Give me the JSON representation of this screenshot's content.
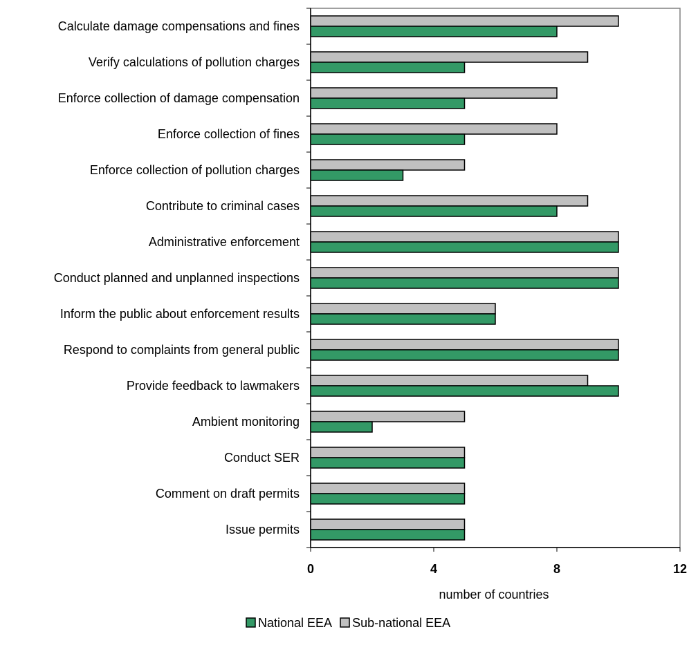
{
  "chart_data": {
    "type": "bar",
    "orientation": "horizontal",
    "categories": [
      "Calculate damage compensations and fines",
      "Verify calculations of pollution charges",
      "Enforce collection of damage compensation",
      "Enforce collection of fines",
      "Enforce collection of pollution charges",
      "Contribute to criminal cases",
      "Administrative enforcement",
      "Conduct planned and unplanned inspections",
      "Inform the public about enforcement results",
      "Respond to complaints from general public",
      "Provide feedback to lawmakers",
      "Ambient monitoring",
      "Conduct SER",
      "Comment on draft permits",
      "Issue permits"
    ],
    "series": [
      {
        "name": "Sub-national EEA",
        "color": "#c0c0c0",
        "values": [
          10,
          9,
          8,
          8,
          5,
          9,
          10,
          10,
          6,
          10,
          9,
          5,
          5,
          5,
          5
        ]
      },
      {
        "name": "National EEA",
        "color": "#339966",
        "values": [
          8,
          5,
          5,
          5,
          3,
          8,
          10,
          10,
          6,
          10,
          10,
          2,
          5,
          5,
          5
        ]
      }
    ],
    "xlabel": "number of countries",
    "ylabel": "",
    "xlim": [
      0,
      12
    ],
    "xticks": [
      0,
      4,
      8,
      12
    ],
    "grid": false,
    "legend": {
      "position": "bottom",
      "entries": [
        "National EEA",
        "Sub-national EEA"
      ]
    }
  }
}
